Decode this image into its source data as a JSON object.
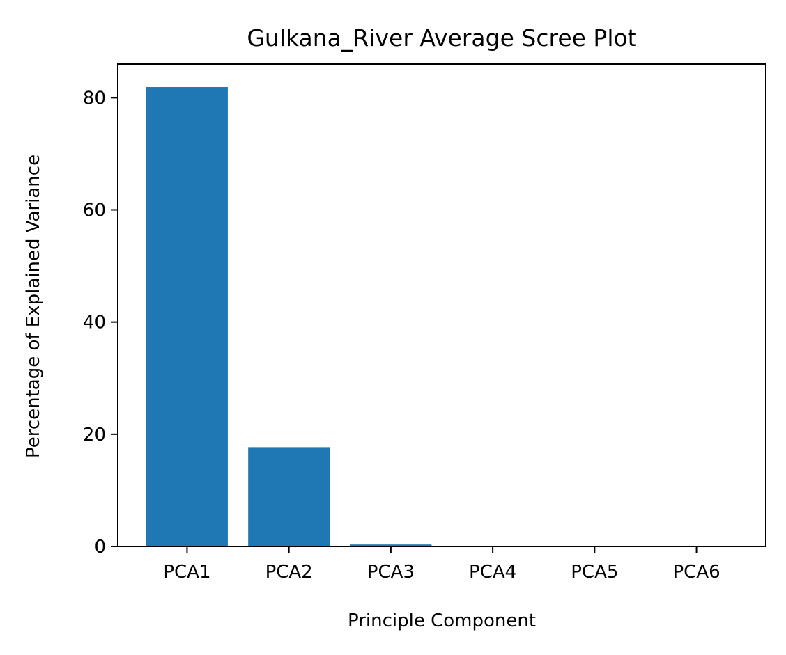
{
  "chart_data": {
    "type": "bar",
    "title": "Gulkana_River Average Scree Plot",
    "xlabel": "Principle Component",
    "ylabel": "Percentage of Explained Variance",
    "categories": [
      "PCA1",
      "PCA2",
      "PCA3",
      "PCA4",
      "PCA5",
      "PCA6"
    ],
    "values": [
      81.9,
      17.7,
      0.35,
      0.03,
      0.01,
      0.01
    ],
    "yticks": [
      0,
      20,
      40,
      60,
      80
    ],
    "ylim": [
      0,
      86
    ],
    "bar_color": "#1f77b4",
    "grid": false,
    "legend": false
  }
}
